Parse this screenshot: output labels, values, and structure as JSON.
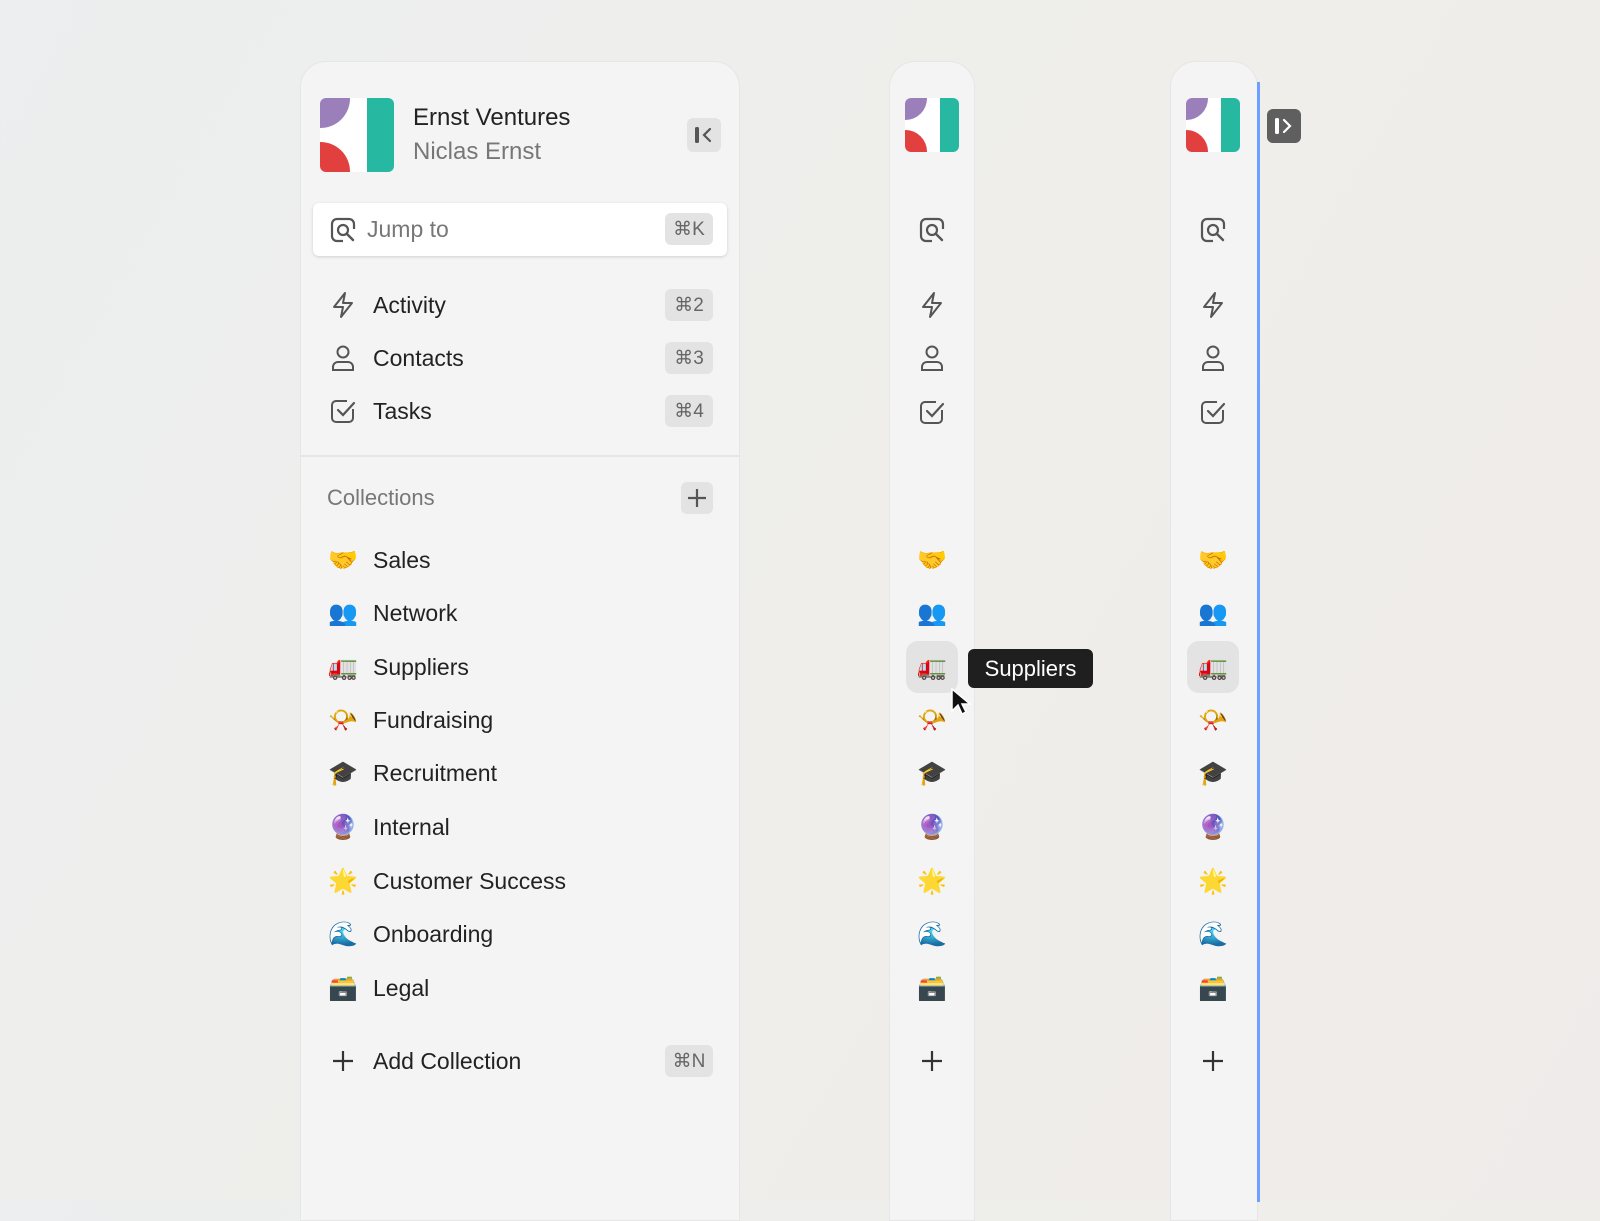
{
  "workspace": {
    "name": "Ernst Ventures",
    "user": "Niclas Ernst"
  },
  "search": {
    "placeholder": "Jump to",
    "shortcut": "⌘K"
  },
  "nav": [
    {
      "label": "Activity",
      "icon": "lightning-icon",
      "shortcut": "⌘2"
    },
    {
      "label": "Contacts",
      "icon": "person-icon",
      "shortcut": "⌘3"
    },
    {
      "label": "Tasks",
      "icon": "checkbox-icon",
      "shortcut": "⌘4"
    }
  ],
  "collections": {
    "title": "Collections",
    "items": [
      {
        "label": "Sales",
        "emoji": "🤝"
      },
      {
        "label": "Network",
        "emoji": "👥"
      },
      {
        "label": "Suppliers",
        "emoji": "🚛"
      },
      {
        "label": "Fundraising",
        "emoji": "📯"
      },
      {
        "label": "Recruitment",
        "emoji": "🎓"
      },
      {
        "label": "Internal",
        "emoji": "🔮"
      },
      {
        "label": "Customer Success",
        "emoji": "🌟"
      },
      {
        "label": "Onboarding",
        "emoji": "🌊"
      },
      {
        "label": "Legal",
        "emoji": "🗃️"
      }
    ]
  },
  "add_collection": {
    "label": "Add Collection",
    "shortcut": "⌘N"
  },
  "tooltip": {
    "text": "Suppliers"
  },
  "colors": {
    "accent": "#6ea1ff",
    "logo_purple": "#9b7fbb",
    "logo_red": "#e2403f",
    "logo_green": "#27b8a2"
  }
}
